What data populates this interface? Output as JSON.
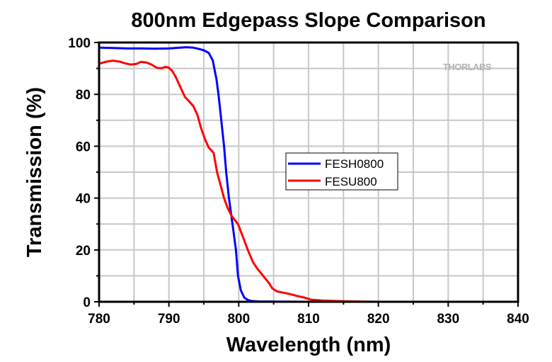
{
  "chart_data": {
    "type": "line",
    "title": "800nm Edgepass Slope Comparison",
    "xlabel": "Wavelength (nm)",
    "ylabel": "Transmission (%)",
    "xlim": [
      780,
      840
    ],
    "ylim": [
      0,
      100
    ],
    "xticks": [
      780,
      790,
      800,
      810,
      820,
      830,
      840
    ],
    "yticks": [
      0,
      20,
      40,
      60,
      80,
      100
    ],
    "xtick_labels": [
      "780",
      "790",
      "800",
      "810",
      "820",
      "830",
      "840"
    ],
    "ytick_labels": [
      "0",
      "20",
      "40",
      "60",
      "80",
      "100"
    ],
    "grid": true,
    "legend_position": "center",
    "watermark": "THORLABS",
    "series": [
      {
        "name": "FESH0800",
        "color": "#0000ff",
        "x": [
          780,
          782,
          784,
          786,
          788,
          790,
          792,
          792.5,
          793.5,
          794.2,
          795,
          795.7,
          796.3,
          796.5,
          796.8,
          797.1,
          797.5,
          797.9,
          798.2,
          798.6,
          799.1,
          799.6,
          799.9,
          800.3,
          800.8,
          801.3,
          801.8,
          803,
          810,
          820,
          830,
          840
        ],
        "y": [
          98,
          97.9,
          97.7,
          97.7,
          97.6,
          97.7,
          98.1,
          98.2,
          98,
          97.6,
          97,
          96,
          93,
          90,
          86,
          80,
          70,
          60,
          50,
          40,
          30,
          20,
          10,
          4.4,
          1.6,
          0.7,
          0.3,
          0.1,
          0,
          0,
          0,
          0
        ]
      },
      {
        "name": "FESU800",
        "color": "#ff0000",
        "x": [
          780,
          781,
          782,
          783,
          783.7,
          784.5,
          785.3,
          786,
          786.8,
          787.5,
          788.3,
          789,
          789.5,
          790,
          790.5,
          791,
          791.7,
          792.3,
          793,
          793.5,
          794.1,
          794.6,
          795.2,
          795.7,
          796.4,
          796.9,
          797.4,
          797.9,
          798.4,
          799,
          799.9,
          800.6,
          801.3,
          802,
          802.6,
          803.2,
          803.8,
          804.4,
          804.8,
          805.5,
          806.4,
          807.3,
          808.4,
          809.4,
          810.4,
          812,
          815,
          820,
          830,
          840
        ],
        "y": [
          91.8,
          92.6,
          93,
          92.6,
          92,
          91.5,
          91.7,
          92.5,
          92.3,
          91.5,
          90.2,
          90.1,
          90.6,
          90.3,
          89,
          86.6,
          82.5,
          79,
          77,
          75.5,
          72,
          67,
          62.5,
          59.5,
          57.5,
          50,
          45,
          40,
          36.3,
          33,
          30,
          25,
          20,
          15.5,
          13,
          11,
          9,
          7,
          5.2,
          4,
          3.5,
          3,
          2.2,
          1.6,
          0.8,
          0.5,
          0.2,
          0,
          0,
          0
        ]
      }
    ]
  }
}
